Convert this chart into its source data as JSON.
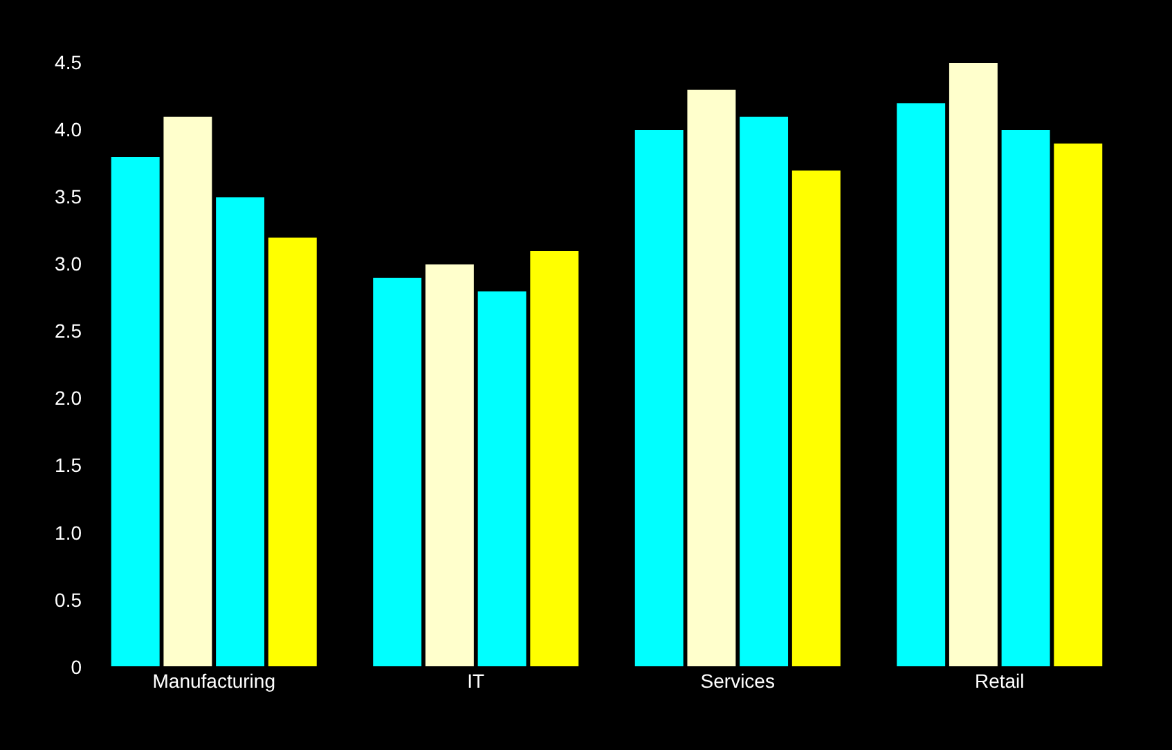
{
  "chart_data": {
    "type": "bar",
    "categories": [
      "Manufacturing",
      "IT",
      "Services",
      "Retail"
    ],
    "series": [
      {
        "color": "#00ffff",
        "values": [
          3.8,
          2.9,
          4.0,
          4.2
        ]
      },
      {
        "color": "#ffffcc",
        "values": [
          4.1,
          3.0,
          4.3,
          4.5
        ]
      },
      {
        "color": "#00ffff",
        "values": [
          3.5,
          2.8,
          4.1,
          4.0
        ]
      },
      {
        "color": "#ffff00",
        "values": [
          3.2,
          3.1,
          3.7,
          3.9
        ]
      }
    ],
    "ylim": [
      0,
      4.5
    ],
    "yticks": [
      0,
      {
        "value": 0.5,
        "label": "0.5"
      },
      {
        "value": 1,
        "label": "1.0"
      },
      {
        "value": 1.5,
        "label": "1.5"
      },
      {
        "value": 2,
        "label": "2.0"
      },
      {
        "value": 2.5,
        "label": "2.5"
      },
      {
        "value": 3,
        "label": "3.0"
      },
      {
        "value": 3.5,
        "label": "3.5"
      },
      {
        "value": 4,
        "label": "4.0"
      },
      {
        "value": 4.5,
        "label": "4.5"
      }
    ],
    "grid": false
  }
}
